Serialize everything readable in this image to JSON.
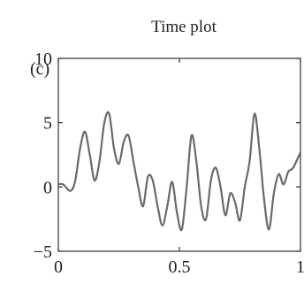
{
  "chart_data": {
    "type": "line",
    "title": "Time plot",
    "panel_label": "(c)",
    "xlabel": "",
    "ylabel": "",
    "xlim": [
      0,
      1
    ],
    "ylim": [
      -5,
      10
    ],
    "xticks": [
      {
        "value": 0,
        "label": "0"
      },
      {
        "value": 0.5,
        "label": "0.5"
      },
      {
        "value": 1,
        "label": "1"
      }
    ],
    "yticks": [
      {
        "value": 10,
        "label": "10"
      },
      {
        "value": 5,
        "label": "5"
      },
      {
        "value": 0,
        "label": "0"
      },
      {
        "value": -5,
        "label": "−5"
      }
    ],
    "grid": false,
    "series": [
      {
        "color": "#6a6a6a",
        "x": [
          0,
          0.02,
          0.05,
          0.07,
          0.09,
          0.11,
          0.13,
          0.15,
          0.17,
          0.19,
          0.21,
          0.23,
          0.25,
          0.27,
          0.29,
          0.31,
          0.33,
          0.35,
          0.37,
          0.39,
          0.41,
          0.43,
          0.45,
          0.47,
          0.49,
          0.51,
          0.53,
          0.55,
          0.57,
          0.59,
          0.61,
          0.63,
          0.65,
          0.67,
          0.69,
          0.71,
          0.73,
          0.75,
          0.77,
          0.79,
          0.81,
          0.83,
          0.85,
          0.87,
          0.89,
          0.91,
          0.93,
          0.95,
          0.97,
          1.0
        ],
        "y": [
          0.2,
          0.2,
          -0.3,
          0.5,
          3.0,
          4.3,
          2.5,
          0.5,
          2.0,
          5.0,
          5.7,
          3.0,
          1.8,
          3.5,
          4.0,
          2.0,
          0.0,
          -1.5,
          0.8,
          0.5,
          -1.5,
          -3.0,
          -1.5,
          0.4,
          -2.0,
          -3.3,
          0.0,
          4.0,
          2.0,
          -1.5,
          -2.5,
          0.5,
          1.5,
          0.0,
          -2.2,
          -0.5,
          -1.2,
          -2.6,
          0.0,
          2.0,
          5.7,
          3.0,
          -1.0,
          -3.3,
          -0.5,
          1.0,
          0.2,
          1.2,
          1.5,
          2.7
        ]
      }
    ]
  }
}
